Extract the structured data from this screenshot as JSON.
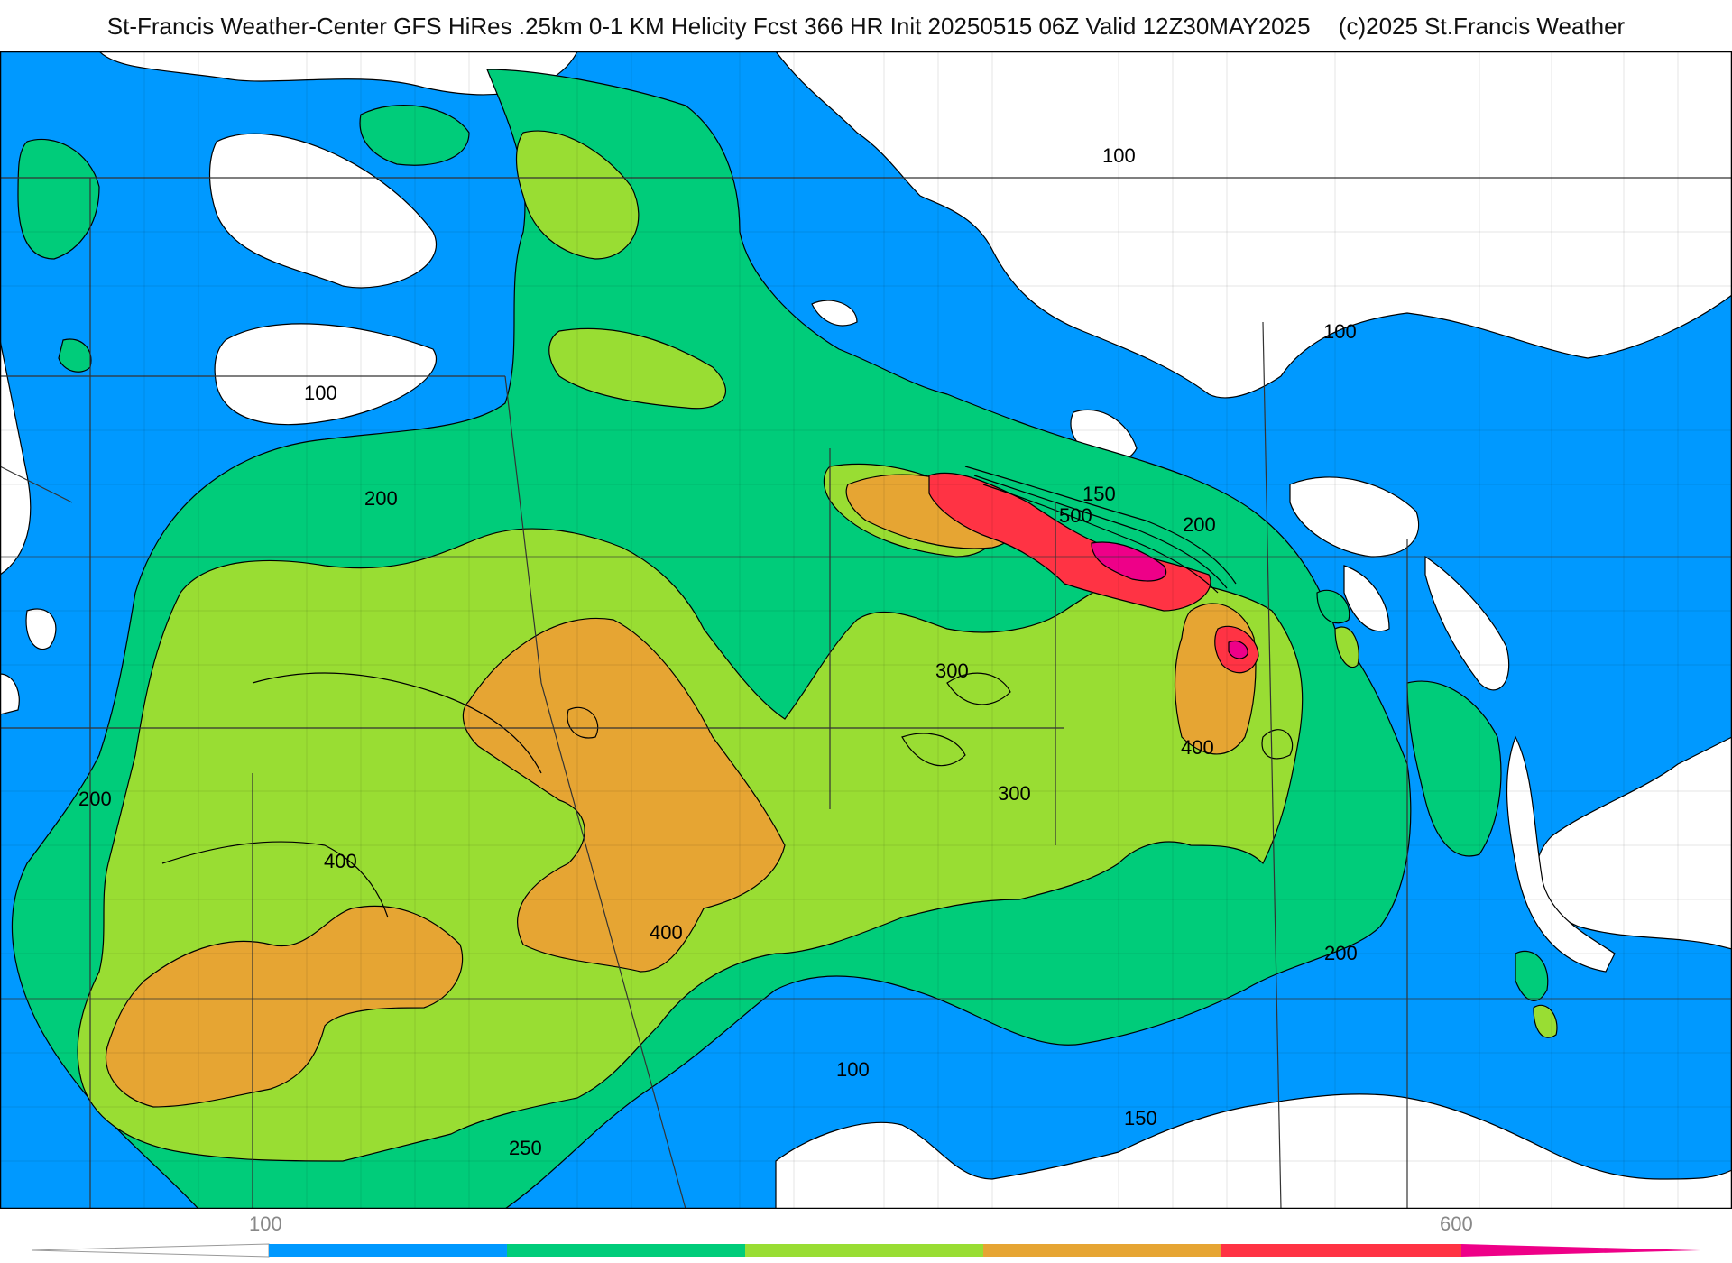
{
  "header": {
    "title": "St-Francis Weather-Center GFS HiRes .25km 0-1 KM Helicity Fcst 366 HR Init 20250515 06Z  Valid 12Z30MAY2025",
    "copyright": "(c)2025 St.Francis Weather"
  },
  "map": {
    "contour_labels": [
      "100",
      "100",
      "100",
      "200",
      "150",
      "500",
      "200",
      "300",
      "400",
      "300",
      "200",
      "400",
      "400",
      "200",
      "100",
      "150",
      "250"
    ]
  },
  "colorbar": {
    "tick_labels": [
      "100",
      "600"
    ],
    "colors": [
      "#0099ff",
      "#00cc7a",
      "#99dd33",
      "#e6a533",
      "#ff3344",
      "#ee0088"
    ]
  },
  "legend_colors": {
    "below_100": "#ffffff",
    "c100_200": "#0099ff",
    "c200_300": "#00cc7a",
    "c300_400": "#99dd33",
    "c400_500": "#e6a533",
    "c500_600": "#ff3344",
    "c600_plus": "#ee0088"
  }
}
